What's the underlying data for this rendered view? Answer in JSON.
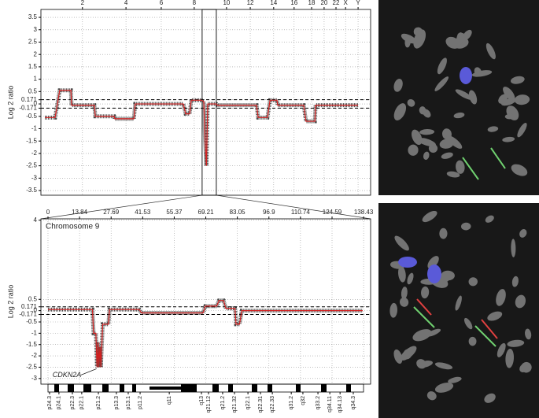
{
  "chart_data": [
    {
      "type": "line",
      "ylabel": "Log 2 ratio",
      "grid": true,
      "xlim": [
        0,
        100
      ],
      "xticks": [
        {
          "value": 12.6,
          "label": "2"
        },
        {
          "value": 25.8,
          "label": "4"
        },
        {
          "value": 36.5,
          "label": "6"
        },
        {
          "value": 46.5,
          "label": "8"
        },
        {
          "value": 56.3,
          "label": "10"
        },
        {
          "value": 63.5,
          "label": "12"
        },
        {
          "value": 70.6,
          "label": "14"
        },
        {
          "value": 76.8,
          "label": "16"
        },
        {
          "value": 82.1,
          "label": "18"
        },
        {
          "value": 85.9,
          "label": "20"
        },
        {
          "value": 89.5,
          "label": "22"
        },
        {
          "value": 92.4,
          "label": "X"
        },
        {
          "value": 96.2,
          "label": "Y"
        }
      ],
      "ylim": [
        -3.69,
        3.82
      ],
      "yticks": [
        3.5,
        3,
        2.5,
        2,
        1.5,
        1,
        0.5,
        0.171,
        0,
        -0.171,
        -0.5,
        -1,
        -1.5,
        -2,
        -2.5,
        -3,
        -3.5
      ],
      "threshold_lines": [
        0.171,
        -0.171
      ],
      "highlight": [
        48.9,
        53.2
      ],
      "series": [
        {
          "color": "#d42020",
          "x": [
            1.2,
            4.3,
            5.7,
            9.1,
            9.3,
            16.2,
            16.5,
            22.2,
            22.4,
            28.2,
            28.6,
            43.2,
            43.9,
            45.1,
            45.6,
            48.7,
            49.4,
            49.8,
            50.2,
            50.6,
            53.2,
            53.5,
            65.4,
            65.9,
            68.7,
            69.5,
            71.6,
            71.8,
            79.7,
            80.4,
            83.1,
            83.3,
            96.2
          ],
          "values": [
            -0.55,
            -0.55,
            0.55,
            0.55,
            -0.05,
            -0.05,
            -0.5,
            -0.5,
            -0.6,
            -0.6,
            0,
            0,
            -0.4,
            -0.4,
            0.15,
            0.15,
            0.1,
            -1.5,
            -2.5,
            0,
            0,
            -0.05,
            -0.05,
            -0.55,
            -0.55,
            0.15,
            0.15,
            -0.05,
            -0.05,
            -0.7,
            -0.7,
            -0.05,
            -0.05
          ]
        }
      ]
    },
    {
      "type": "line",
      "ylabel": "Log 2 ratio",
      "grid": true,
      "title": "Chromosome 9",
      "xlim": [
        -3.1,
        141.5
      ],
      "xticks": [
        0,
        13.84,
        27.69,
        41.53,
        55.37,
        69.21,
        83.05,
        96.9,
        110.74,
        124.59,
        138.43
      ],
      "ylim": [
        -3.25,
        4.06
      ],
      "yticks": [
        4,
        0.5,
        0.171,
        0,
        -0.171,
        -0.5,
        -1,
        -1.5,
        -2,
        -2.5,
        -3
      ],
      "threshold_lines": [
        0.171,
        -0.171
      ],
      "annotation": {
        "text": "CDKN2A",
        "x": 22,
        "y": -2.5
      },
      "bands": [
        {
          "label": "p24.3",
          "x": 0.7
        },
        {
          "label": "p24.1",
          "x": 4.8
        },
        {
          "label": "p22.3",
          "x": 10.7
        },
        {
          "label": "p22.1",
          "x": 14.8
        },
        {
          "label": "p21.2",
          "x": 22.1
        },
        {
          "label": "p13.3",
          "x": 30
        },
        {
          "label": "p13.1",
          "x": 35.2
        },
        {
          "label": "p11.2",
          "x": 40.4
        },
        {
          "label": "q11",
          "x": 53.2
        },
        {
          "label": "q13",
          "x": 67.3
        },
        {
          "label": "q21.12",
          "x": 70.4
        },
        {
          "label": "q21.2",
          "x": 76.6
        },
        {
          "label": "q21.32",
          "x": 81.8
        },
        {
          "label": "q22.1",
          "x": 87.7
        },
        {
          "label": "q22.31",
          "x": 93.2
        },
        {
          "label": "q22.33",
          "x": 98.4
        },
        {
          "label": "q31.2",
          "x": 106.7
        },
        {
          "label": "q32",
          "x": 111.8
        },
        {
          "label": "q33.2",
          "x": 118.4
        },
        {
          "label": "q34.11",
          "x": 123.6
        },
        {
          "label": "q34.13",
          "x": 128.1
        },
        {
          "label": "q34.3",
          "x": 133.9
        }
      ],
      "series": [
        {
          "color": "#d42020",
          "x": [
            0,
            19.5,
            20,
            21,
            21.5,
            22,
            22.3,
            22.8,
            23.2,
            24,
            26.5,
            27,
            40,
            41,
            68,
            69,
            74,
            75,
            77,
            78,
            82,
            82.5,
            84,
            85,
            138
          ],
          "values": [
            0.05,
            0.05,
            -1.0,
            -1.0,
            -2.5,
            -1.4,
            -2.5,
            -1.6,
            -2.5,
            -0.6,
            -0.6,
            0.05,
            0.05,
            -0.1,
            -0.1,
            0.2,
            0.2,
            0.45,
            0.45,
            0.1,
            0.1,
            -0.6,
            -0.6,
            0,
            0
          ]
        }
      ]
    }
  ]
}
